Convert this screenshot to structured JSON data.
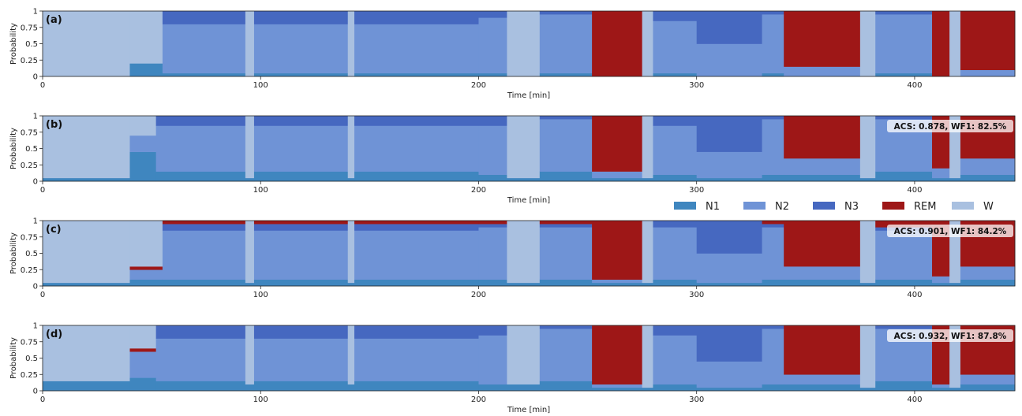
{
  "chart_data": [
    {
      "panel": "(a)",
      "type": "area",
      "stacked": true,
      "xlabel": "Time [min]",
      "ylabel": "Probability",
      "xlim": [
        0,
        446
      ],
      "ylim": [
        0,
        1
      ],
      "xticks": [
        "0",
        "100",
        "200",
        "300",
        "400"
      ],
      "yticks": [
        "0",
        "0.25",
        "0.5",
        "0.75",
        "1"
      ],
      "metric": "",
      "segments": [
        {
          "start": 0,
          "end": 40,
          "N1": 0.0,
          "N2": 0.0,
          "N3": 0.0,
          "REM": 0.0,
          "W": 1.0
        },
        {
          "start": 40,
          "end": 55,
          "N1": 0.2,
          "N2": 0.0,
          "N3": 0.0,
          "REM": 0.0,
          "W": 0.8
        },
        {
          "start": 55,
          "end": 93,
          "N1": 0.05,
          "N2": 0.75,
          "N3": 0.2,
          "REM": 0.0,
          "W": 0.0
        },
        {
          "start": 93,
          "end": 97,
          "N1": 0.0,
          "N2": 0.0,
          "N3": 0.0,
          "REM": 0.0,
          "W": 1.0
        },
        {
          "start": 97,
          "end": 140,
          "N1": 0.05,
          "N2": 0.75,
          "N3": 0.2,
          "REM": 0.0,
          "W": 0.0
        },
        {
          "start": 140,
          "end": 143,
          "N1": 0.0,
          "N2": 0.0,
          "N3": 0.0,
          "REM": 0.0,
          "W": 1.0
        },
        {
          "start": 143,
          "end": 200,
          "N1": 0.05,
          "N2": 0.75,
          "N3": 0.2,
          "REM": 0.0,
          "W": 0.0
        },
        {
          "start": 200,
          "end": 213,
          "N1": 0.05,
          "N2": 0.85,
          "N3": 0.1,
          "REM": 0.0,
          "W": 0.0
        },
        {
          "start": 213,
          "end": 228,
          "N1": 0.0,
          "N2": 0.0,
          "N3": 0.0,
          "REM": 0.0,
          "W": 1.0
        },
        {
          "start": 228,
          "end": 252,
          "N1": 0.05,
          "N2": 0.9,
          "N3": 0.05,
          "REM": 0.0,
          "W": 0.0
        },
        {
          "start": 252,
          "end": 275,
          "N1": 0.0,
          "N2": 0.0,
          "N3": 0.0,
          "REM": 1.0,
          "W": 0.0
        },
        {
          "start": 275,
          "end": 280,
          "N1": 0.0,
          "N2": 0.0,
          "N3": 0.0,
          "REM": 0.0,
          "W": 1.0
        },
        {
          "start": 280,
          "end": 300,
          "N1": 0.05,
          "N2": 0.8,
          "N3": 0.15,
          "REM": 0.0,
          "W": 0.0
        },
        {
          "start": 300,
          "end": 330,
          "N1": 0.0,
          "N2": 0.5,
          "N3": 0.5,
          "REM": 0.0,
          "W": 0.0
        },
        {
          "start": 330,
          "end": 340,
          "N1": 0.05,
          "N2": 0.9,
          "N3": 0.05,
          "REM": 0.0,
          "W": 0.0
        },
        {
          "start": 340,
          "end": 375,
          "N1": 0.0,
          "N2": 0.15,
          "N3": 0.0,
          "REM": 0.85,
          "W": 0.0
        },
        {
          "start": 375,
          "end": 382,
          "N1": 0.0,
          "N2": 0.0,
          "N3": 0.0,
          "REM": 0.0,
          "W": 1.0
        },
        {
          "start": 382,
          "end": 408,
          "N1": 0.05,
          "N2": 0.9,
          "N3": 0.05,
          "REM": 0.0,
          "W": 0.0
        },
        {
          "start": 408,
          "end": 416,
          "N1": 0.0,
          "N2": 0.0,
          "N3": 0.0,
          "REM": 1.0,
          "W": 0.0
        },
        {
          "start": 416,
          "end": 421,
          "N1": 0.0,
          "N2": 0.0,
          "N3": 0.0,
          "REM": 0.0,
          "W": 1.0
        },
        {
          "start": 421,
          "end": 446,
          "N1": 0.0,
          "N2": 0.1,
          "N3": 0.0,
          "REM": 0.9,
          "W": 0.0
        }
      ]
    },
    {
      "panel": "(b)",
      "type": "area",
      "stacked": true,
      "xlabel": "Time [min]",
      "ylabel": "Probability",
      "xlim": [
        0,
        446
      ],
      "ylim": [
        0,
        1
      ],
      "xticks": [
        "0",
        "100",
        "200",
        "300",
        "400"
      ],
      "yticks": [
        "0",
        "0.25",
        "0.5",
        "0.75",
        "1"
      ],
      "metric": "ACS: 0.878, WF1: 82.5%",
      "segments": [
        {
          "start": 0,
          "end": 40,
          "N1": 0.05,
          "N2": 0.0,
          "N3": 0.0,
          "REM": 0.0,
          "W": 0.95
        },
        {
          "start": 40,
          "end": 52,
          "N1": 0.45,
          "N2": 0.25,
          "N3": 0.0,
          "REM": 0.0,
          "W": 0.3
        },
        {
          "start": 52,
          "end": 93,
          "N1": 0.15,
          "N2": 0.7,
          "N3": 0.15,
          "REM": 0.0,
          "W": 0.0
        },
        {
          "start": 93,
          "end": 97,
          "N1": 0.05,
          "N2": 0.0,
          "N3": 0.0,
          "REM": 0.0,
          "W": 0.95
        },
        {
          "start": 97,
          "end": 140,
          "N1": 0.15,
          "N2": 0.7,
          "N3": 0.15,
          "REM": 0.0,
          "W": 0.0
        },
        {
          "start": 140,
          "end": 143,
          "N1": 0.05,
          "N2": 0.0,
          "N3": 0.0,
          "REM": 0.0,
          "W": 0.95
        },
        {
          "start": 143,
          "end": 200,
          "N1": 0.15,
          "N2": 0.7,
          "N3": 0.15,
          "REM": 0.0,
          "W": 0.0
        },
        {
          "start": 200,
          "end": 213,
          "N1": 0.1,
          "N2": 0.75,
          "N3": 0.15,
          "REM": 0.0,
          "W": 0.0
        },
        {
          "start": 213,
          "end": 228,
          "N1": 0.05,
          "N2": 0.0,
          "N3": 0.0,
          "REM": 0.0,
          "W": 0.95
        },
        {
          "start": 228,
          "end": 252,
          "N1": 0.15,
          "N2": 0.8,
          "N3": 0.05,
          "REM": 0.0,
          "W": 0.0
        },
        {
          "start": 252,
          "end": 275,
          "N1": 0.05,
          "N2": 0.1,
          "N3": 0.0,
          "REM": 0.85,
          "W": 0.0
        },
        {
          "start": 275,
          "end": 280,
          "N1": 0.05,
          "N2": 0.0,
          "N3": 0.0,
          "REM": 0.0,
          "W": 0.95
        },
        {
          "start": 280,
          "end": 300,
          "N1": 0.1,
          "N2": 0.75,
          "N3": 0.15,
          "REM": 0.0,
          "W": 0.0
        },
        {
          "start": 300,
          "end": 330,
          "N1": 0.05,
          "N2": 0.4,
          "N3": 0.55,
          "REM": 0.0,
          "W": 0.0
        },
        {
          "start": 330,
          "end": 340,
          "N1": 0.1,
          "N2": 0.85,
          "N3": 0.05,
          "REM": 0.0,
          "W": 0.0
        },
        {
          "start": 340,
          "end": 375,
          "N1": 0.1,
          "N2": 0.25,
          "N3": 0.0,
          "REM": 0.65,
          "W": 0.0
        },
        {
          "start": 375,
          "end": 382,
          "N1": 0.05,
          "N2": 0.0,
          "N3": 0.0,
          "REM": 0.0,
          "W": 0.95
        },
        {
          "start": 382,
          "end": 408,
          "N1": 0.15,
          "N2": 0.8,
          "N3": 0.05,
          "REM": 0.0,
          "W": 0.0
        },
        {
          "start": 408,
          "end": 416,
          "N1": 0.05,
          "N2": 0.15,
          "N3": 0.0,
          "REM": 0.8,
          "W": 0.0
        },
        {
          "start": 416,
          "end": 421,
          "N1": 0.05,
          "N2": 0.0,
          "N3": 0.0,
          "REM": 0.0,
          "W": 0.95
        },
        {
          "start": 421,
          "end": 446,
          "N1": 0.1,
          "N2": 0.25,
          "N3": 0.0,
          "REM": 0.65,
          "W": 0.0
        }
      ]
    },
    {
      "panel": "(c)",
      "type": "area",
      "stacked": true,
      "xlabel": "",
      "ylabel": "Probability",
      "xlim": [
        0,
        446
      ],
      "ylim": [
        0,
        1
      ],
      "xticks": [
        "0",
        "100",
        "200",
        "300",
        "400"
      ],
      "yticks": [
        "0",
        "0.25",
        "0.5",
        "0.75",
        "1"
      ],
      "metric": "ACS: 0.901, WF1: 84.2%",
      "segments": [
        {
          "start": 0,
          "end": 40,
          "N1": 0.05,
          "N2": 0.0,
          "N3": 0.0,
          "REM": 0.0,
          "W": 0.95
        },
        {
          "start": 40,
          "end": 55,
          "N1": 0.1,
          "N2": 0.15,
          "N3": 0.0,
          "REM": 0.05,
          "W": 0.7
        },
        {
          "start": 55,
          "end": 93,
          "N1": 0.1,
          "N2": 0.75,
          "N3": 0.1,
          "REM": 0.05,
          "W": 0.0
        },
        {
          "start": 93,
          "end": 97,
          "N1": 0.05,
          "N2": 0.0,
          "N3": 0.0,
          "REM": 0.0,
          "W": 0.95
        },
        {
          "start": 97,
          "end": 140,
          "N1": 0.1,
          "N2": 0.75,
          "N3": 0.1,
          "REM": 0.05,
          "W": 0.0
        },
        {
          "start": 140,
          "end": 143,
          "N1": 0.05,
          "N2": 0.0,
          "N3": 0.0,
          "REM": 0.0,
          "W": 0.95
        },
        {
          "start": 143,
          "end": 200,
          "N1": 0.1,
          "N2": 0.75,
          "N3": 0.1,
          "REM": 0.05,
          "W": 0.0
        },
        {
          "start": 200,
          "end": 213,
          "N1": 0.1,
          "N2": 0.8,
          "N3": 0.05,
          "REM": 0.05,
          "W": 0.0
        },
        {
          "start": 213,
          "end": 228,
          "N1": 0.05,
          "N2": 0.0,
          "N3": 0.0,
          "REM": 0.0,
          "W": 0.95
        },
        {
          "start": 228,
          "end": 252,
          "N1": 0.1,
          "N2": 0.8,
          "N3": 0.05,
          "REM": 0.05,
          "W": 0.0
        },
        {
          "start": 252,
          "end": 275,
          "N1": 0.05,
          "N2": 0.05,
          "N3": 0.0,
          "REM": 0.9,
          "W": 0.0
        },
        {
          "start": 275,
          "end": 280,
          "N1": 0.05,
          "N2": 0.0,
          "N3": 0.0,
          "REM": 0.0,
          "W": 0.95
        },
        {
          "start": 280,
          "end": 300,
          "N1": 0.1,
          "N2": 0.8,
          "N3": 0.1,
          "REM": 0.0,
          "W": 0.0
        },
        {
          "start": 300,
          "end": 330,
          "N1": 0.05,
          "N2": 0.45,
          "N3": 0.5,
          "REM": 0.0,
          "W": 0.0
        },
        {
          "start": 330,
          "end": 340,
          "N1": 0.1,
          "N2": 0.8,
          "N3": 0.05,
          "REM": 0.05,
          "W": 0.0
        },
        {
          "start": 340,
          "end": 375,
          "N1": 0.1,
          "N2": 0.2,
          "N3": 0.0,
          "REM": 0.7,
          "W": 0.0
        },
        {
          "start": 375,
          "end": 382,
          "N1": 0.05,
          "N2": 0.0,
          "N3": 0.0,
          "REM": 0.0,
          "W": 0.95
        },
        {
          "start": 382,
          "end": 408,
          "N1": 0.1,
          "N2": 0.75,
          "N3": 0.05,
          "REM": 0.1,
          "W": 0.0
        },
        {
          "start": 408,
          "end": 416,
          "N1": 0.05,
          "N2": 0.1,
          "N3": 0.0,
          "REM": 0.85,
          "W": 0.0
        },
        {
          "start": 416,
          "end": 421,
          "N1": 0.05,
          "N2": 0.0,
          "N3": 0.0,
          "REM": 0.0,
          "W": 0.95
        },
        {
          "start": 421,
          "end": 446,
          "N1": 0.1,
          "N2": 0.2,
          "N3": 0.0,
          "REM": 0.7,
          "W": 0.0
        }
      ]
    },
    {
      "panel": "(d)",
      "type": "area",
      "stacked": true,
      "xlabel": "Time [min]",
      "ylabel": "Probability",
      "xlim": [
        0,
        446
      ],
      "ylim": [
        0,
        1
      ],
      "xticks": [
        "0",
        "100",
        "200",
        "300",
        "400"
      ],
      "yticks": [
        "0",
        "0.25",
        "0.5",
        "0.75",
        "1"
      ],
      "metric": "ACS: 0.932, WF1: 87.8%",
      "segments": [
        {
          "start": 0,
          "end": 40,
          "N1": 0.15,
          "N2": 0.0,
          "N3": 0.0,
          "REM": 0.0,
          "W": 0.85
        },
        {
          "start": 40,
          "end": 52,
          "N1": 0.2,
          "N2": 0.4,
          "N3": 0.0,
          "REM": 0.05,
          "W": 0.35
        },
        {
          "start": 52,
          "end": 93,
          "N1": 0.15,
          "N2": 0.65,
          "N3": 0.2,
          "REM": 0.0,
          "W": 0.0
        },
        {
          "start": 93,
          "end": 97,
          "N1": 0.1,
          "N2": 0.0,
          "N3": 0.0,
          "REM": 0.0,
          "W": 0.9
        },
        {
          "start": 97,
          "end": 140,
          "N1": 0.15,
          "N2": 0.65,
          "N3": 0.2,
          "REM": 0.0,
          "W": 0.0
        },
        {
          "start": 140,
          "end": 143,
          "N1": 0.1,
          "N2": 0.0,
          "N3": 0.0,
          "REM": 0.0,
          "W": 0.9
        },
        {
          "start": 143,
          "end": 200,
          "N1": 0.15,
          "N2": 0.65,
          "N3": 0.2,
          "REM": 0.0,
          "W": 0.0
        },
        {
          "start": 200,
          "end": 213,
          "N1": 0.1,
          "N2": 0.75,
          "N3": 0.15,
          "REM": 0.0,
          "W": 0.0
        },
        {
          "start": 213,
          "end": 228,
          "N1": 0.1,
          "N2": 0.0,
          "N3": 0.0,
          "REM": 0.0,
          "W": 0.9
        },
        {
          "start": 228,
          "end": 252,
          "N1": 0.15,
          "N2": 0.8,
          "N3": 0.05,
          "REM": 0.0,
          "W": 0.0
        },
        {
          "start": 252,
          "end": 275,
          "N1": 0.05,
          "N2": 0.05,
          "N3": 0.0,
          "REM": 0.9,
          "W": 0.0
        },
        {
          "start": 275,
          "end": 280,
          "N1": 0.05,
          "N2": 0.0,
          "N3": 0.0,
          "REM": 0.0,
          "W": 0.95
        },
        {
          "start": 280,
          "end": 300,
          "N1": 0.1,
          "N2": 0.75,
          "N3": 0.15,
          "REM": 0.0,
          "W": 0.0
        },
        {
          "start": 300,
          "end": 330,
          "N1": 0.05,
          "N2": 0.4,
          "N3": 0.55,
          "REM": 0.0,
          "W": 0.0
        },
        {
          "start": 330,
          "end": 340,
          "N1": 0.1,
          "N2": 0.85,
          "N3": 0.05,
          "REM": 0.0,
          "W": 0.0
        },
        {
          "start": 340,
          "end": 375,
          "N1": 0.1,
          "N2": 0.15,
          "N3": 0.0,
          "REM": 0.75,
          "W": 0.0
        },
        {
          "start": 375,
          "end": 382,
          "N1": 0.05,
          "N2": 0.0,
          "N3": 0.0,
          "REM": 0.0,
          "W": 0.95
        },
        {
          "start": 382,
          "end": 408,
          "N1": 0.15,
          "N2": 0.8,
          "N3": 0.05,
          "REM": 0.0,
          "W": 0.0
        },
        {
          "start": 408,
          "end": 416,
          "N1": 0.05,
          "N2": 0.05,
          "N3": 0.0,
          "REM": 0.9,
          "W": 0.0
        },
        {
          "start": 416,
          "end": 421,
          "N1": 0.05,
          "N2": 0.0,
          "N3": 0.0,
          "REM": 0.0,
          "W": 0.95
        },
        {
          "start": 421,
          "end": 446,
          "N1": 0.1,
          "N2": 0.15,
          "N3": 0.0,
          "REM": 0.75,
          "W": 0.0
        }
      ]
    }
  ],
  "legend": {
    "position": "between-b-and-c-right",
    "items": [
      {
        "label": "N1",
        "color": "#3f86bf"
      },
      {
        "label": "N2",
        "color": "#6f93d6"
      },
      {
        "label": "N3",
        "color": "#4668c0"
      },
      {
        "label": "REM",
        "color": "#9e1717"
      },
      {
        "label": "W",
        "color": "#a9c0e0"
      }
    ]
  }
}
